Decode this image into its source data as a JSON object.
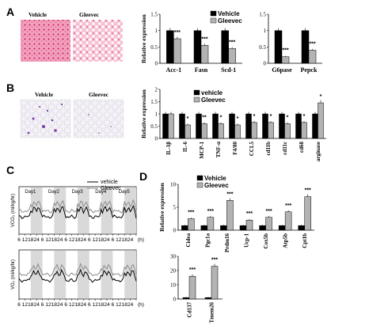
{
  "colors": {
    "vehicle": "#000000",
    "gleevec": "#b3b3b3",
    "he": "#e0457a",
    "oro": "#8a5bb8"
  },
  "panels": {
    "A": "A",
    "B": "B",
    "C": "C",
    "D": "D"
  },
  "image_labels": {
    "vehicle": "Vehicle",
    "gleevec": "Gleevec"
  },
  "chart_data": [
    {
      "type": "bar",
      "panel": "A",
      "ylabel": "Relative expression",
      "ylim": [
        0,
        1.5
      ],
      "yticks": [
        "0",
        "0.5",
        "1",
        "1.5"
      ],
      "categories": [
        "Acc-1",
        "Fasn",
        "Scd-1"
      ],
      "legend": [
        "Vehicle",
        "Gleevec"
      ],
      "series": [
        {
          "name": "Vehicle",
          "values": [
            1.0,
            1.0,
            1.0
          ]
        },
        {
          "name": "Gleevec",
          "values": [
            0.75,
            0.55,
            0.45
          ]
        }
      ],
      "annotations": [
        "***",
        "***",
        "***"
      ]
    },
    {
      "type": "bar",
      "panel": "A",
      "ylim": [
        0,
        1.5
      ],
      "yticks": [
        "0",
        "0.5",
        "1",
        "1.5"
      ],
      "categories": [
        "G6pase",
        "Pepck"
      ],
      "series": [
        {
          "name": "Vehicle",
          "values": [
            1.0,
            1.0
          ]
        },
        {
          "name": "Gleevec",
          "values": [
            0.2,
            0.4
          ]
        }
      ],
      "annotations": [
        "***",
        "***"
      ]
    },
    {
      "type": "bar",
      "panel": "B",
      "ylabel": "Relative expression",
      "ylim": [
        0,
        2
      ],
      "yticks": [
        "0",
        "0.5",
        "1",
        "1.5",
        "2"
      ],
      "categories": [
        "IL-1β",
        "IL-6",
        "MCP-1",
        "TNF-α",
        "F4/80",
        "CCL5",
        "cd11b",
        "cd11c",
        "cd68",
        "arginase"
      ],
      "legend": [
        "vehicle",
        "Gleevec"
      ],
      "series": [
        {
          "name": "vehicle",
          "values": [
            1.0,
            1.0,
            1.0,
            1.0,
            1.0,
            1.0,
            1.0,
            1.0,
            1.0,
            1.0
          ]
        },
        {
          "name": "Gleevec",
          "values": [
            1.0,
            0.55,
            0.6,
            0.6,
            0.55,
            0.65,
            0.65,
            0.6,
            0.65,
            1.45
          ]
        }
      ],
      "annotations": [
        "",
        "*",
        "**",
        "*",
        "*",
        "*",
        "*",
        "*",
        "*",
        "*"
      ]
    },
    {
      "type": "line",
      "panel": "C",
      "ylabel": "VCO₂ (ml/kg/hr)",
      "xticks": [
        "6",
        "12",
        "18",
        "24",
        "6",
        "12",
        "18",
        "24",
        "6",
        "12",
        "18",
        "24",
        "6",
        "12",
        "18",
        "24",
        "6",
        "12",
        "18",
        "24",
        "(h)"
      ],
      "days": [
        "Day1",
        "Day2",
        "Day3",
        "Day4",
        "Day5"
      ],
      "legend": [
        "vehicle",
        "Gleevec"
      ]
    },
    {
      "type": "line",
      "panel": "C",
      "ylabel": "VO₂ (ml/kg/hr)",
      "xticks": [
        "6",
        "12",
        "18",
        "24",
        "6",
        "12",
        "18",
        "24",
        "6",
        "12",
        "18",
        "24",
        "6",
        "12",
        "18",
        "24",
        "6",
        "12",
        "18",
        "24",
        "(h)"
      ]
    },
    {
      "type": "bar",
      "panel": "D",
      "ylabel": "Relative expression",
      "ylim": [
        0,
        10
      ],
      "yticks": [
        "0",
        "5",
        "10"
      ],
      "categories": [
        "Cidea",
        "Pgc1a",
        "Prdm16",
        "Ucp-1",
        "Cox5b",
        "Atp5b",
        "Cpt1b"
      ],
      "legend": [
        "Vehicle",
        "Gleevec"
      ],
      "series": [
        {
          "name": "Vehicle",
          "values": [
            1,
            1,
            1,
            1,
            1,
            1,
            1
          ]
        },
        {
          "name": "Gleevec",
          "values": [
            2.5,
            2.8,
            6.5,
            2.2,
            2.8,
            4.0,
            7.3
          ]
        }
      ],
      "annotations": [
        "***",
        "***",
        "***",
        "***",
        "***",
        "***",
        "***"
      ]
    },
    {
      "type": "bar",
      "panel": "D",
      "ylim": [
        0,
        30
      ],
      "yticks": [
        "0",
        "10",
        "20",
        "30"
      ],
      "categories": [
        "Cd137",
        "Tmem26"
      ],
      "series": [
        {
          "name": "Vehicle",
          "values": [
            1,
            1
          ]
        },
        {
          "name": "Gleevec",
          "values": [
            16,
            23
          ]
        }
      ],
      "annotations": [
        "***",
        "***"
      ]
    }
  ]
}
